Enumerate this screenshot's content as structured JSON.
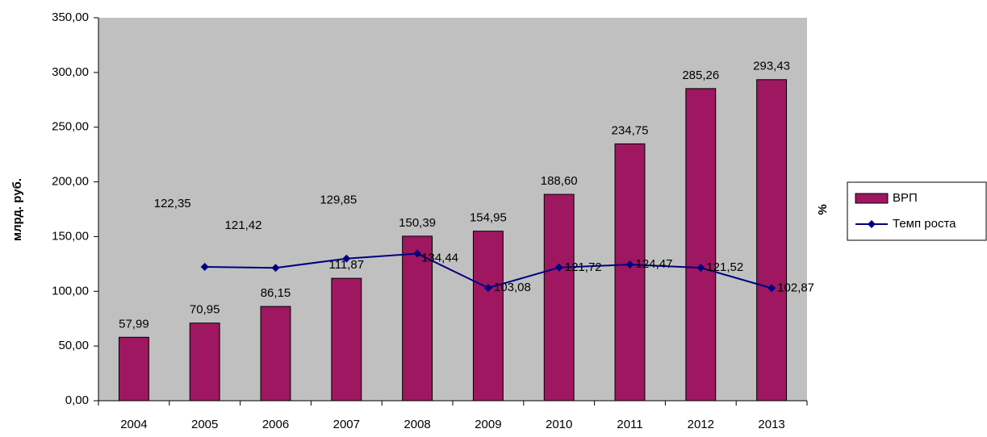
{
  "chart_data": {
    "type": "bar-line",
    "y_label": "млрд. руб.",
    "y2_label": "%",
    "categories": [
      "2004",
      "2005",
      "2006",
      "2007",
      "2008",
      "2009",
      "2010",
      "2011",
      "2012",
      "2013"
    ],
    "series": [
      {
        "name": "ВРП",
        "type": "bar",
        "color": "#9e1760",
        "values": [
          57.99,
          70.95,
          86.15,
          111.87,
          150.39,
          154.95,
          188.6,
          234.75,
          285.26,
          293.43
        ],
        "value_labels": [
          "57,99",
          "70,95",
          "86,15",
          "111,87",
          "150,39",
          "154,95",
          "188,60",
          "234,75",
          "285,26",
          "293,43"
        ]
      },
      {
        "name": "Темп роста",
        "type": "line",
        "color": "#000080",
        "values": [
          null,
          122.35,
          121.42,
          129.85,
          134.44,
          103.08,
          121.72,
          124.47,
          121.52,
          102.87
        ],
        "value_labels": [
          null,
          "122,35",
          "121,42",
          "129,85",
          "134,44",
          "103,08",
          "121,72",
          "124,47",
          "121,52",
          "102,87"
        ]
      }
    ],
    "ylim": [
      0,
      350
    ],
    "yticks": [
      {
        "value": 0,
        "label": "0,00"
      },
      {
        "value": 50,
        "label": "50,00"
      },
      {
        "value": 100,
        "label": "100,00"
      },
      {
        "value": 150,
        "label": "150,00"
      },
      {
        "value": 200,
        "label": "200,00"
      },
      {
        "value": 250,
        "label": "250,00"
      },
      {
        "value": 300,
        "label": "300,00"
      },
      {
        "value": 350,
        "label": "350,00"
      }
    ],
    "legend": "right"
  }
}
